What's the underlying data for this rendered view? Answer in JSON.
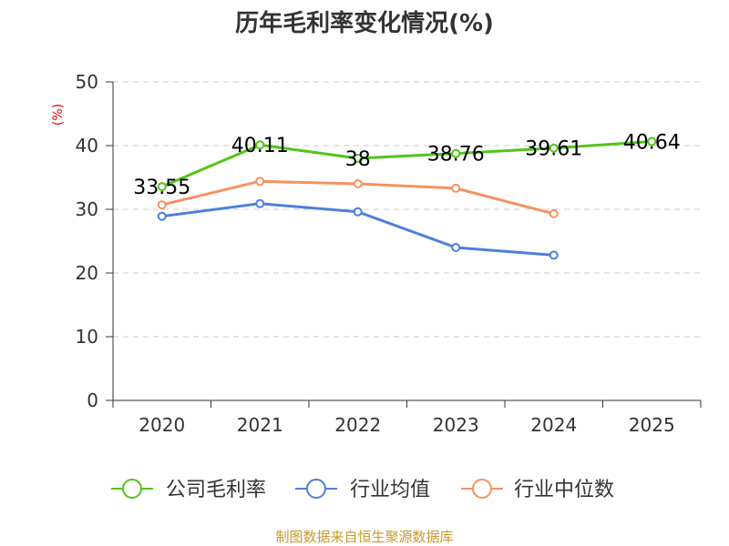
{
  "chart_data": {
    "type": "line",
    "title": "历年毛利率变化情况(%)",
    "unit": "(%)",
    "categories": [
      "2020",
      "2021",
      "2022",
      "2023",
      "2024",
      "2025"
    ],
    "ylim": [
      0,
      50
    ],
    "yticks": [
      0,
      10,
      20,
      30,
      40,
      50
    ],
    "grid": true,
    "legend_position": "bottom",
    "series": [
      {
        "name": "公司毛利率",
        "color": "#52c41a",
        "values": [
          33.55,
          40.11,
          38,
          38.76,
          39.61,
          40.64
        ],
        "labels": [
          "33.55",
          "40.11",
          "38",
          "38.76",
          "39.61",
          "40.64"
        ]
      },
      {
        "name": "行业均值",
        "color": "#4e7fdb",
        "values": [
          28.9,
          30.9,
          29.6,
          24.0,
          22.8,
          null
        ]
      },
      {
        "name": "行业中位数",
        "color": "#f5925e",
        "values": [
          30.7,
          34.4,
          34.0,
          33.3,
          29.3,
          null
        ]
      }
    ],
    "source": "制图数据来自恒生聚源数据库"
  }
}
